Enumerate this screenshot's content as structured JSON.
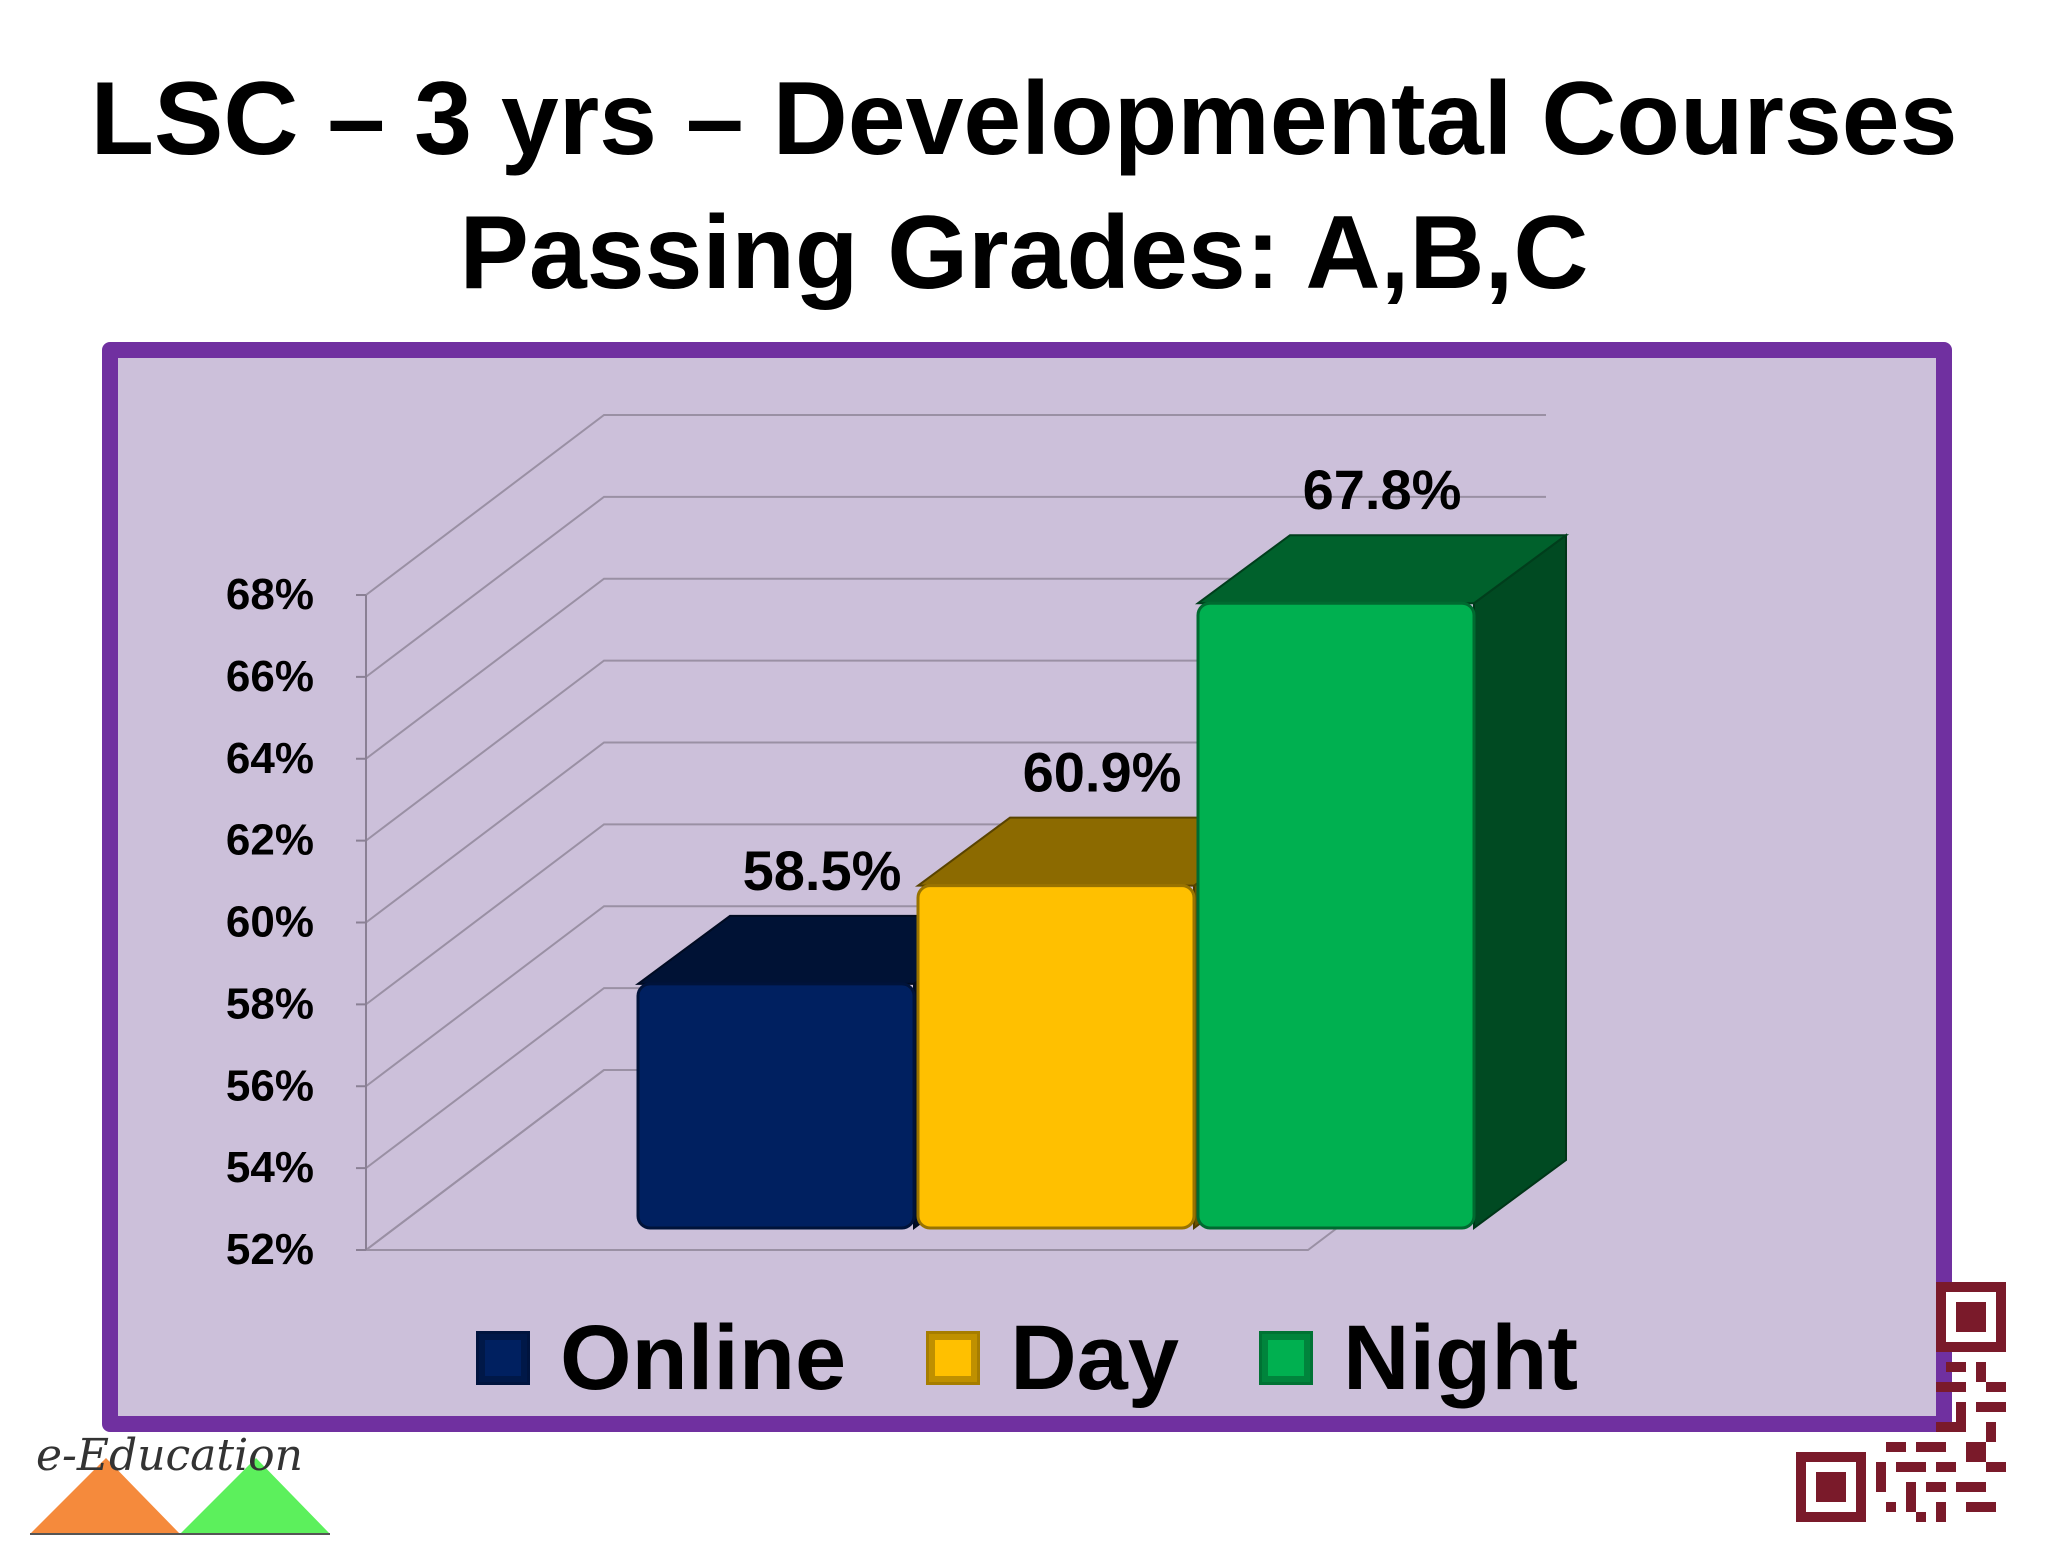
{
  "slide": {
    "title_line1": "LSC – 3 yrs – Developmental Courses",
    "title_line2": "Passing Grades: A,B,C"
  },
  "colors": {
    "frame_border": "#7030a0",
    "plot_background": "#ccc0da",
    "online": "#002060",
    "day": "#ffc000",
    "night": "#00b050"
  },
  "icons": {
    "logo": "e-education-logo",
    "qr": "qr-code-icon"
  },
  "chart_data": {
    "type": "bar",
    "title": "",
    "xlabel": "",
    "ylabel": "",
    "categories": [
      "Online",
      "Day",
      "Night"
    ],
    "values": [
      58.5,
      60.9,
      67.8
    ],
    "data_labels": [
      "58.5%",
      "60.9%",
      "67.8%"
    ],
    "ylim": [
      52,
      68
    ],
    "yticks": [
      52,
      54,
      56,
      58,
      60,
      62,
      64,
      66,
      68
    ],
    "ytick_labels": [
      "52%",
      "54%",
      "56%",
      "58%",
      "60%",
      "62%",
      "64%",
      "66%",
      "68%"
    ],
    "grid": true,
    "three_d": true,
    "legend_position": "bottom",
    "legend": [
      {
        "label": "Online",
        "color": "#002060"
      },
      {
        "label": "Day",
        "color": "#ffc000"
      },
      {
        "label": "Night",
        "color": "#00b050"
      }
    ]
  }
}
